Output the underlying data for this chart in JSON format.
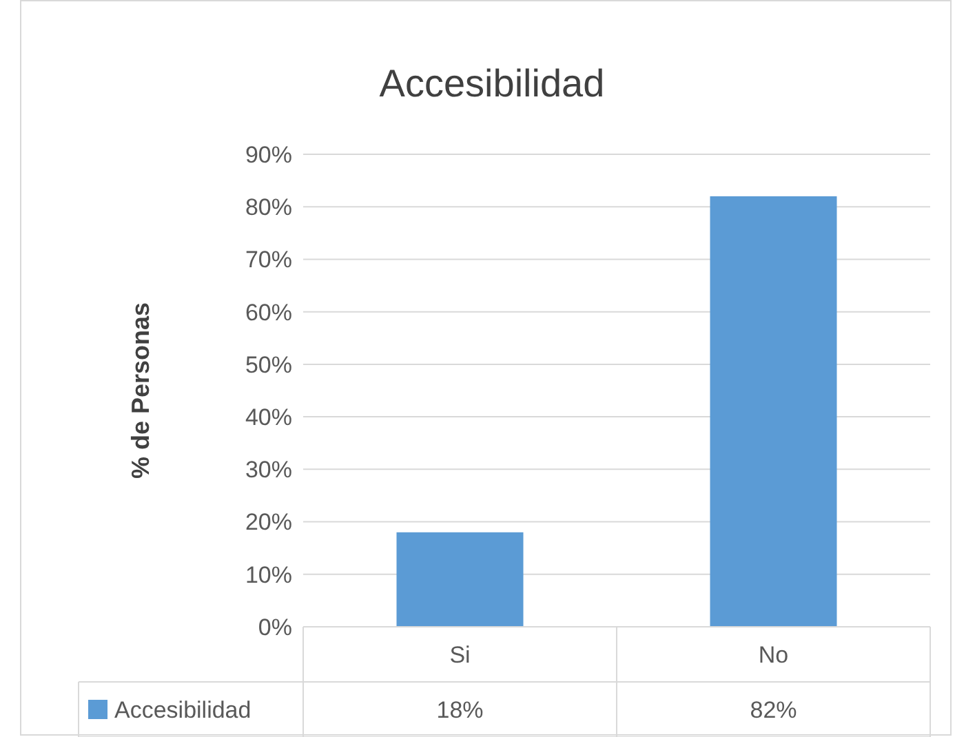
{
  "chart_data": {
    "type": "bar",
    "title": "Accesibilidad",
    "ylabel": "% de Personas",
    "categories": [
      "Si",
      "No"
    ],
    "series": [
      {
        "name": "Accesibilidad",
        "color": "#5b9bd5",
        "values": [
          18,
          82
        ]
      }
    ],
    "ylim": [
      0,
      90
    ],
    "yticks": [
      {
        "value": 0,
        "label": "0%"
      },
      {
        "value": 10,
        "label": "10%"
      },
      {
        "value": 20,
        "label": "20%"
      },
      {
        "value": 30,
        "label": "30%"
      },
      {
        "value": 40,
        "label": "40%"
      },
      {
        "value": 50,
        "label": "50%"
      },
      {
        "value": 60,
        "label": "60%"
      },
      {
        "value": 70,
        "label": "70%"
      },
      {
        "value": 80,
        "label": "80%"
      },
      {
        "value": 90,
        "label": "90%"
      }
    ],
    "grid": "y",
    "legend": "bottom",
    "value_labels": [
      "18%",
      "82%"
    ]
  }
}
